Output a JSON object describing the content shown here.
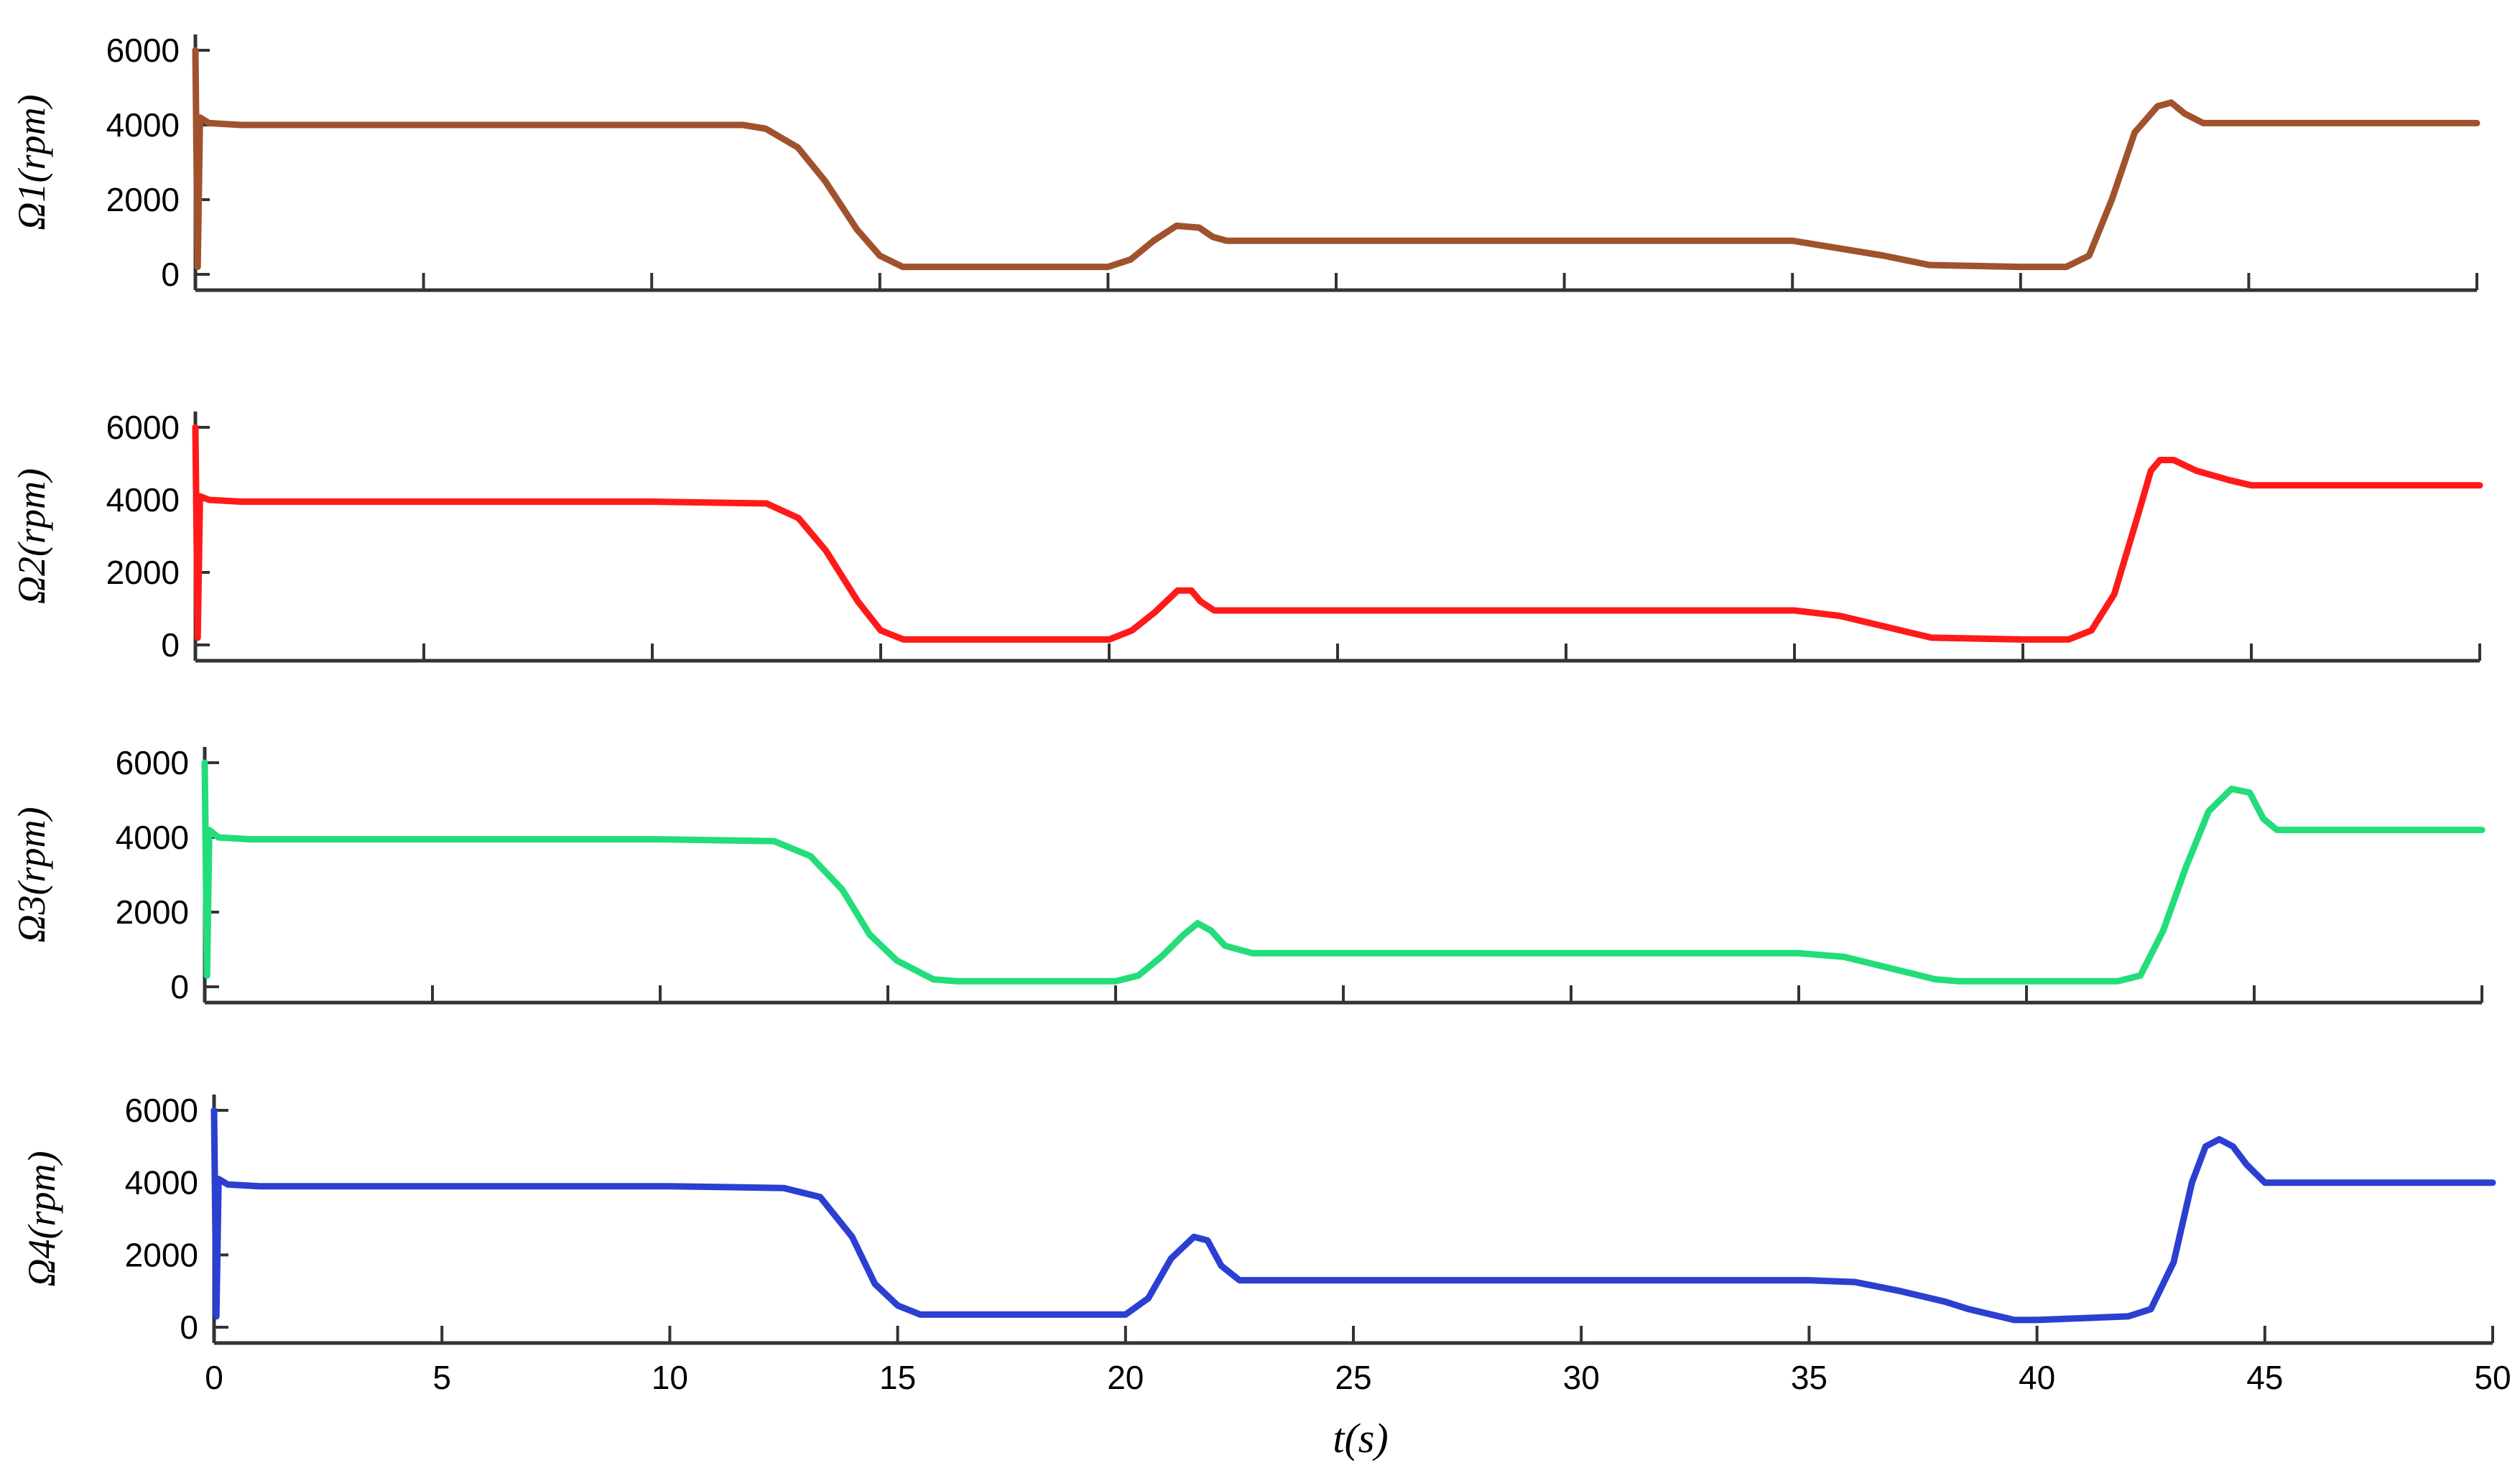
{
  "chart_data": [
    {
      "type": "line",
      "ylabel": "Ω1(rpm)",
      "ylim": [
        0,
        6000
      ],
      "xlim": [
        0,
        50
      ],
      "yticks": [
        "0",
        "2000",
        "4000",
        "6000"
      ],
      "color": "#a0522d",
      "series": [
        {
          "x": [
            0,
            0.05,
            0.1,
            0.3,
            1,
            5,
            10,
            12,
            12.5,
            13.2,
            13.8,
            14.5,
            15.0,
            15.5,
            16,
            20,
            20.5,
            21,
            21.5,
            22,
            22.3,
            22.6,
            25,
            30,
            35,
            36,
            37,
            38,
            40,
            41,
            41.5,
            42,
            42.5,
            43.0,
            43.3,
            43.6,
            44,
            45,
            50
          ],
          "y": [
            6000,
            200,
            4200,
            4050,
            4000,
            4000,
            4000,
            4000,
            3900,
            3400,
            2500,
            1200,
            500,
            200,
            200,
            200,
            400,
            900,
            1300,
            1250,
            1000,
            900,
            900,
            900,
            900,
            700,
            500,
            250,
            200,
            200,
            500,
            2000,
            3800,
            4500,
            4600,
            4300,
            4050,
            4050,
            4050
          ]
        }
      ]
    },
    {
      "type": "line",
      "ylabel": "Ω2(rpm)",
      "ylim": [
        0,
        6000
      ],
      "xlim": [
        0,
        50
      ],
      "yticks": [
        "0",
        "2000",
        "4000",
        "6000"
      ],
      "color": "#ff1a1a",
      "series": [
        {
          "x": [
            0,
            0.05,
            0.1,
            0.3,
            1,
            5,
            10,
            12.5,
            13.2,
            13.8,
            14.5,
            15.0,
            15.5,
            16,
            20,
            20.5,
            21,
            21.5,
            21.8,
            22.0,
            22.3,
            25,
            30,
            35,
            36,
            37,
            38,
            40,
            41,
            41.5,
            42,
            42.5,
            42.8,
            43.0,
            43.3,
            43.8,
            44.5,
            45,
            50
          ],
          "y": [
            6000,
            200,
            4100,
            4000,
            3950,
            3950,
            3950,
            3900,
            3500,
            2600,
            1200,
            400,
            150,
            150,
            150,
            400,
            900,
            1500,
            1500,
            1200,
            950,
            950,
            950,
            950,
            800,
            500,
            200,
            150,
            150,
            400,
            1400,
            3500,
            4800,
            5100,
            5100,
            4800,
            4550,
            4400,
            4400
          ]
        }
      ]
    },
    {
      "type": "line",
      "ylabel": "Ω3(rpm)",
      "ylim": [
        0,
        6000
      ],
      "xlim": [
        0,
        50
      ],
      "yticks": [
        "0",
        "2000",
        "4000",
        "6000"
      ],
      "color": "#22dd7a",
      "series": [
        {
          "x": [
            0,
            0.05,
            0.1,
            0.3,
            1,
            5,
            10,
            12.5,
            13.3,
            14.0,
            14.6,
            15.2,
            16,
            16.5,
            20,
            20.5,
            21,
            21.5,
            21.8,
            22.1,
            22.4,
            23,
            25,
            30,
            35,
            36,
            37,
            38,
            38.5,
            40,
            42,
            42.5,
            43,
            43.5,
            44.0,
            44.5,
            44.9,
            45.2,
            45.5,
            46,
            50
          ],
          "y": [
            6000,
            300,
            4200,
            4000,
            3950,
            3950,
            3950,
            3900,
            3500,
            2600,
            1400,
            700,
            200,
            150,
            150,
            300,
            800,
            1400,
            1700,
            1500,
            1100,
            900,
            900,
            900,
            900,
            800,
            500,
            200,
            150,
            150,
            150,
            300,
            1500,
            3200,
            4700,
            5300,
            5200,
            4500,
            4200,
            4200,
            4200
          ]
        }
      ]
    },
    {
      "type": "line",
      "ylabel": "Ω4(rpm)",
      "ylim": [
        0,
        6000
      ],
      "xlim": [
        0,
        50
      ],
      "yticks": [
        "0",
        "2000",
        "4000",
        "6000"
      ],
      "xticks": [
        "0",
        "5",
        "10",
        "15",
        "20",
        "25",
        "30",
        "35",
        "40",
        "45",
        "50"
      ],
      "xlabel": "t(s)",
      "color": "#2b3fd1",
      "series": [
        {
          "x": [
            0,
            0.05,
            0.1,
            0.3,
            1,
            5,
            10,
            12.5,
            13.3,
            14.0,
            14.5,
            15.0,
            15.5,
            16,
            20,
            20.5,
            21,
            21.5,
            21.8,
            22.1,
            22.5,
            25,
            30,
            35,
            36,
            37,
            38,
            38.5,
            39.5,
            40,
            42,
            42.5,
            43,
            43.4,
            43.7,
            44.0,
            44.3,
            44.6,
            45,
            50
          ],
          "y": [
            6000,
            300,
            4100,
            3950,
            3900,
            3900,
            3900,
            3850,
            3600,
            2500,
            1200,
            600,
            350,
            350,
            350,
            800,
            1900,
            2500,
            2400,
            1700,
            1300,
            1300,
            1300,
            1300,
            1250,
            1000,
            700,
            500,
            200,
            200,
            300,
            500,
            1800,
            4000,
            5000,
            5200,
            5000,
            4500,
            4000,
            4000
          ]
        }
      ]
    }
  ]
}
